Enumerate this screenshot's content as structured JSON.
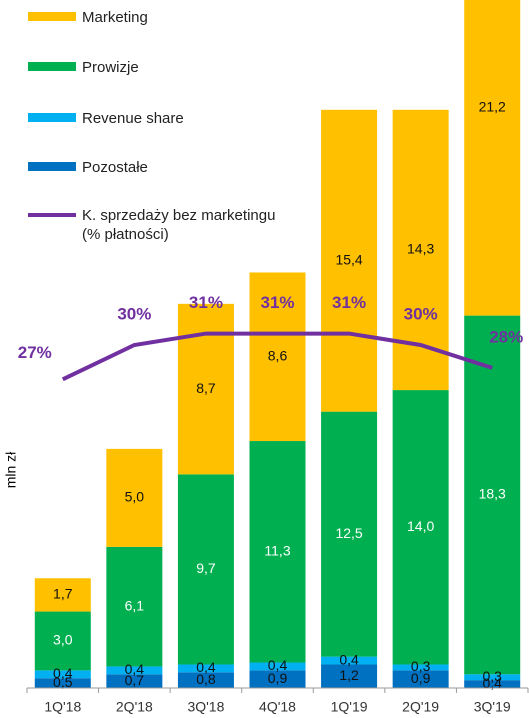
{
  "chart_data": {
    "type": "bar",
    "stacked": true,
    "y_label": "mln zł",
    "categories": [
      "1Q'18",
      "2Q'18",
      "3Q'18",
      "4Q'18",
      "1Q'19",
      "2Q'19",
      "3Q'19"
    ],
    "ylim": [
      0,
      35
    ],
    "y2lim": [
      0,
      60
    ],
    "series": [
      {
        "name": "Marketing",
        "color": "#FFC000",
        "values": [
          1.7,
          5.0,
          8.7,
          8.6,
          15.4,
          14.3,
          21.2
        ],
        "value_labels": [
          "1,7",
          "5,0",
          "8,7",
          "8,6",
          "15,4",
          "14,3",
          "21,2"
        ]
      },
      {
        "name": "Prowizje",
        "color": "#00B050",
        "values": [
          3.0,
          6.1,
          9.7,
          11.3,
          12.5,
          14.0,
          18.3
        ],
        "value_labels": [
          "3,0",
          "6,1",
          "9,7",
          "11,3",
          "12,5",
          "14,0",
          "18,3"
        ]
      },
      {
        "name": "Revenue share",
        "color": "#00B0F0",
        "values": [
          0.4,
          0.4,
          0.4,
          0.4,
          0.4,
          0.3,
          0.3
        ],
        "value_labels": [
          "0,4",
          "0,4",
          "0,4",
          "0,4",
          "0,4",
          "0,3",
          "0,3"
        ]
      },
      {
        "name": "Pozostałe",
        "color": "#0070C0",
        "values": [
          0.5,
          0.7,
          0.8,
          0.9,
          1.2,
          0.9,
          0.4
        ],
        "value_labels": [
          "0,5",
          "0,7",
          "0,8",
          "0,9",
          "1,2",
          "0,9",
          "0,4"
        ]
      },
      {
        "name": "K. sprzedaży bez marketingu (% płatności)",
        "type": "line",
        "axis": "y2",
        "color": "#7030A0",
        "values": [
          27,
          30,
          31,
          31,
          31,
          30,
          28
        ],
        "value_labels": [
          "27%",
          "30%",
          "31%",
          "31%",
          "31%",
          "30%",
          "28%"
        ]
      }
    ]
  }
}
